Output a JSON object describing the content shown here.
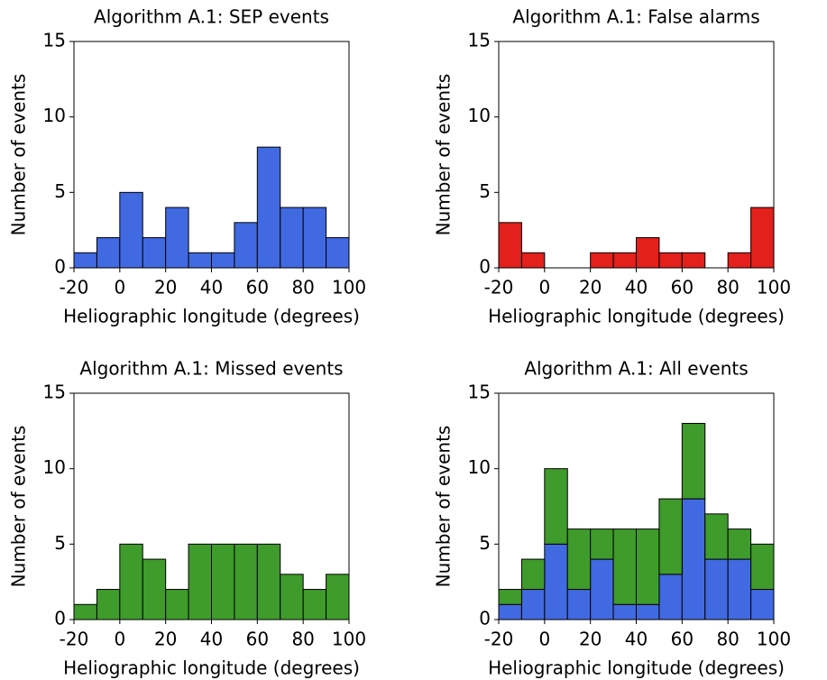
{
  "chart_data": [
    {
      "type": "histogram",
      "title": "Algorithm A.1: SEP events",
      "xlabel": "Heliographic longitude (degrees)",
      "ylabel": "Number of events",
      "bins": [
        -20,
        -10,
        0,
        10,
        20,
        30,
        40,
        50,
        60,
        70,
        80,
        90,
        100
      ],
      "values": [
        1,
        2,
        5,
        2,
        4,
        1,
        1,
        3,
        8,
        4,
        4,
        2
      ],
      "color": "#4169e1",
      "xlim": [
        -20,
        100
      ],
      "xticks": [
        -20,
        0,
        20,
        40,
        60,
        80,
        100
      ],
      "ylim": [
        0,
        15
      ],
      "yticks": [
        0,
        5,
        10,
        15
      ]
    },
    {
      "type": "histogram",
      "title": "Algorithm A.1: False alarms",
      "xlabel": "Heliographic longitude (degrees)",
      "ylabel": "Number of events",
      "bins": [
        -20,
        -10,
        0,
        10,
        20,
        30,
        40,
        50,
        60,
        70,
        80,
        90,
        100
      ],
      "values": [
        3,
        1,
        0,
        0,
        1,
        1,
        2,
        1,
        1,
        0,
        1,
        4
      ],
      "color": "#e3201b",
      "xlim": [
        -20,
        100
      ],
      "xticks": [
        -20,
        0,
        20,
        40,
        60,
        80,
        100
      ],
      "ylim": [
        0,
        15
      ],
      "yticks": [
        0,
        5,
        10,
        15
      ]
    },
    {
      "type": "histogram",
      "title": "Algorithm A.1: Missed events",
      "xlabel": "Heliographic longitude (degrees)",
      "ylabel": "Number of events",
      "bins": [
        -20,
        -10,
        0,
        10,
        20,
        30,
        40,
        50,
        60,
        70,
        80,
        90,
        100
      ],
      "values": [
        1,
        2,
        5,
        4,
        2,
        5,
        5,
        5,
        5,
        3,
        2,
        3
      ],
      "color": "#3f9b2b",
      "xlim": [
        -20,
        100
      ],
      "xticks": [
        -20,
        0,
        20,
        40,
        60,
        80,
        100
      ],
      "ylim": [
        0,
        15
      ],
      "yticks": [
        0,
        5,
        10,
        15
      ]
    },
    {
      "type": "stacked-histogram",
      "title": "Algorithm A.1: All events",
      "xlabel": "Heliographic longitude (degrees)",
      "ylabel": "Number of events",
      "bins": [
        -20,
        -10,
        0,
        10,
        20,
        30,
        40,
        50,
        60,
        70,
        80,
        90,
        100
      ],
      "series": [
        {
          "color": "#4169e1",
          "values": [
            1,
            2,
            5,
            2,
            4,
            1,
            1,
            3,
            8,
            4,
            4,
            2
          ]
        },
        {
          "color": "#3f9b2b",
          "values": [
            1,
            2,
            5,
            4,
            2,
            5,
            5,
            5,
            5,
            3,
            2,
            3
          ]
        }
      ],
      "xlim": [
        -20,
        100
      ],
      "xticks": [
        -20,
        0,
        20,
        40,
        60,
        80,
        100
      ],
      "ylim": [
        0,
        15
      ],
      "yticks": [
        0,
        5,
        10,
        15
      ]
    }
  ]
}
